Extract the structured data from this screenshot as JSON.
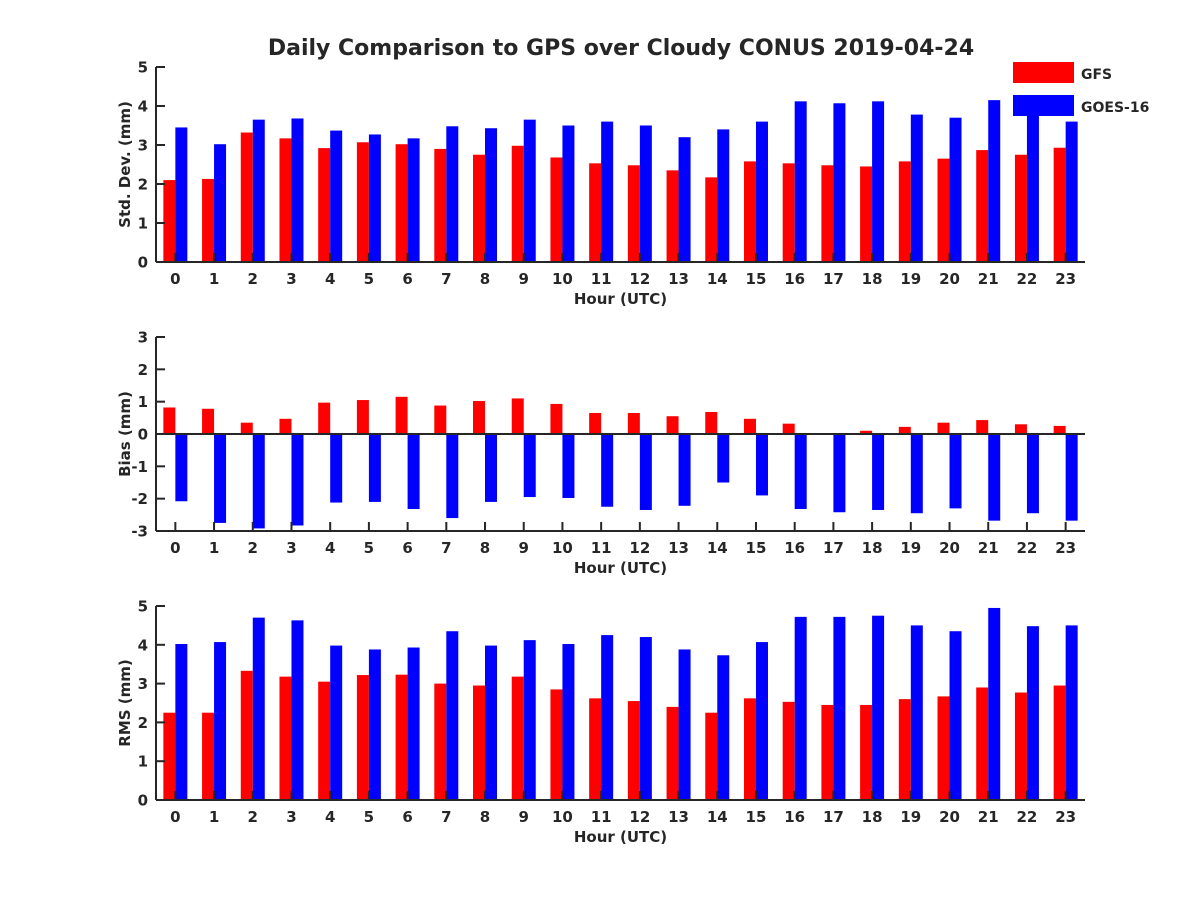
{
  "figure": {
    "title": "Daily Comparison to GPS over Cloudy CONUS 2019-04-24",
    "colors": {
      "GFS": "#ff0000",
      "GOES-16": "#0000ff",
      "axis": "#262626"
    }
  },
  "legend": {
    "placement": "top-right",
    "entries": [
      {
        "name": "GFS",
        "color": "#ff0000"
      },
      {
        "name": "GOES-16",
        "color": "#0000ff"
      }
    ]
  },
  "chart_data": [
    {
      "type": "bar",
      "xlabel": "Hour (UTC)",
      "ylabel": "Std. Dev. (mm)",
      "ylim": [
        0,
        5
      ],
      "yticks": [
        "0",
        "1",
        "2",
        "3",
        "4",
        "5"
      ],
      "categories": [
        "0",
        "1",
        "2",
        "3",
        "4",
        "5",
        "6",
        "7",
        "8",
        "9",
        "10",
        "11",
        "12",
        "13",
        "14",
        "15",
        "16",
        "17",
        "18",
        "19",
        "20",
        "21",
        "22",
        "23"
      ],
      "series": [
        {
          "name": "GFS",
          "color": "#ff0000",
          "values": [
            2.1,
            2.13,
            3.32,
            3.17,
            2.92,
            3.07,
            3.02,
            2.9,
            2.75,
            2.98,
            2.68,
            2.53,
            2.48,
            2.35,
            2.17,
            2.58,
            2.53,
            2.48,
            2.45,
            2.58,
            2.65,
            2.87,
            2.75,
            2.93
          ]
        },
        {
          "name": "GOES-16",
          "color": "#0000ff",
          "values": [
            3.45,
            3.02,
            3.65,
            3.68,
            3.37,
            3.27,
            3.17,
            3.48,
            3.43,
            3.65,
            3.5,
            3.6,
            3.5,
            3.2,
            3.4,
            3.6,
            4.12,
            4.07,
            4.12,
            3.78,
            3.7,
            4.15,
            3.75,
            3.6
          ]
        }
      ]
    },
    {
      "type": "bar",
      "xlabel": "Hour (UTC)",
      "ylabel": "Bias (mm)",
      "ylim": [
        -3,
        3
      ],
      "yticks": [
        "-3",
        "-2",
        "-1",
        "0",
        "1",
        "2",
        "3"
      ],
      "categories": [
        "0",
        "1",
        "2",
        "3",
        "4",
        "5",
        "6",
        "7",
        "8",
        "9",
        "10",
        "11",
        "12",
        "13",
        "14",
        "15",
        "16",
        "17",
        "18",
        "19",
        "20",
        "21",
        "22",
        "23"
      ],
      "series": [
        {
          "name": "GFS",
          "color": "#ff0000",
          "values": [
            0.82,
            0.78,
            0.35,
            0.47,
            0.97,
            1.05,
            1.15,
            0.88,
            1.02,
            1.1,
            0.93,
            0.65,
            0.65,
            0.55,
            0.68,
            0.47,
            0.32,
            0.02,
            0.1,
            0.22,
            0.35,
            0.43,
            0.3,
            0.25
          ]
        },
        {
          "name": "GOES-16",
          "color": "#0000ff",
          "values": [
            -2.08,
            -2.75,
            -2.92,
            -2.83,
            -2.12,
            -2.1,
            -2.32,
            -2.6,
            -2.1,
            -1.95,
            -1.98,
            -2.25,
            -2.35,
            -2.22,
            -1.5,
            -1.9,
            -2.32,
            -2.42,
            -2.35,
            -2.45,
            -2.3,
            -2.68,
            -2.45,
            -2.68
          ]
        }
      ]
    },
    {
      "type": "bar",
      "xlabel": "Hour (UTC)",
      "ylabel": "RMS (mm)",
      "ylim": [
        0,
        5
      ],
      "yticks": [
        "0",
        "1",
        "2",
        "3",
        "4",
        "5"
      ],
      "categories": [
        "0",
        "1",
        "2",
        "3",
        "4",
        "5",
        "6",
        "7",
        "8",
        "9",
        "10",
        "11",
        "12",
        "13",
        "14",
        "15",
        "16",
        "17",
        "18",
        "19",
        "20",
        "21",
        "22",
        "23"
      ],
      "series": [
        {
          "name": "GFS",
          "color": "#ff0000",
          "values": [
            2.25,
            2.25,
            3.33,
            3.18,
            3.05,
            3.22,
            3.23,
            3.0,
            2.95,
            3.18,
            2.85,
            2.62,
            2.55,
            2.4,
            2.25,
            2.62,
            2.53,
            2.45,
            2.45,
            2.6,
            2.67,
            2.9,
            2.77,
            2.95
          ]
        },
        {
          "name": "GOES-16",
          "color": "#0000ff",
          "values": [
            4.02,
            4.07,
            4.7,
            4.63,
            3.98,
            3.88,
            3.93,
            4.35,
            3.98,
            4.12,
            4.02,
            4.25,
            4.2,
            3.88,
            3.73,
            4.07,
            4.72,
            4.72,
            4.75,
            4.5,
            4.35,
            4.95,
            4.48,
            4.5
          ]
        }
      ]
    }
  ]
}
